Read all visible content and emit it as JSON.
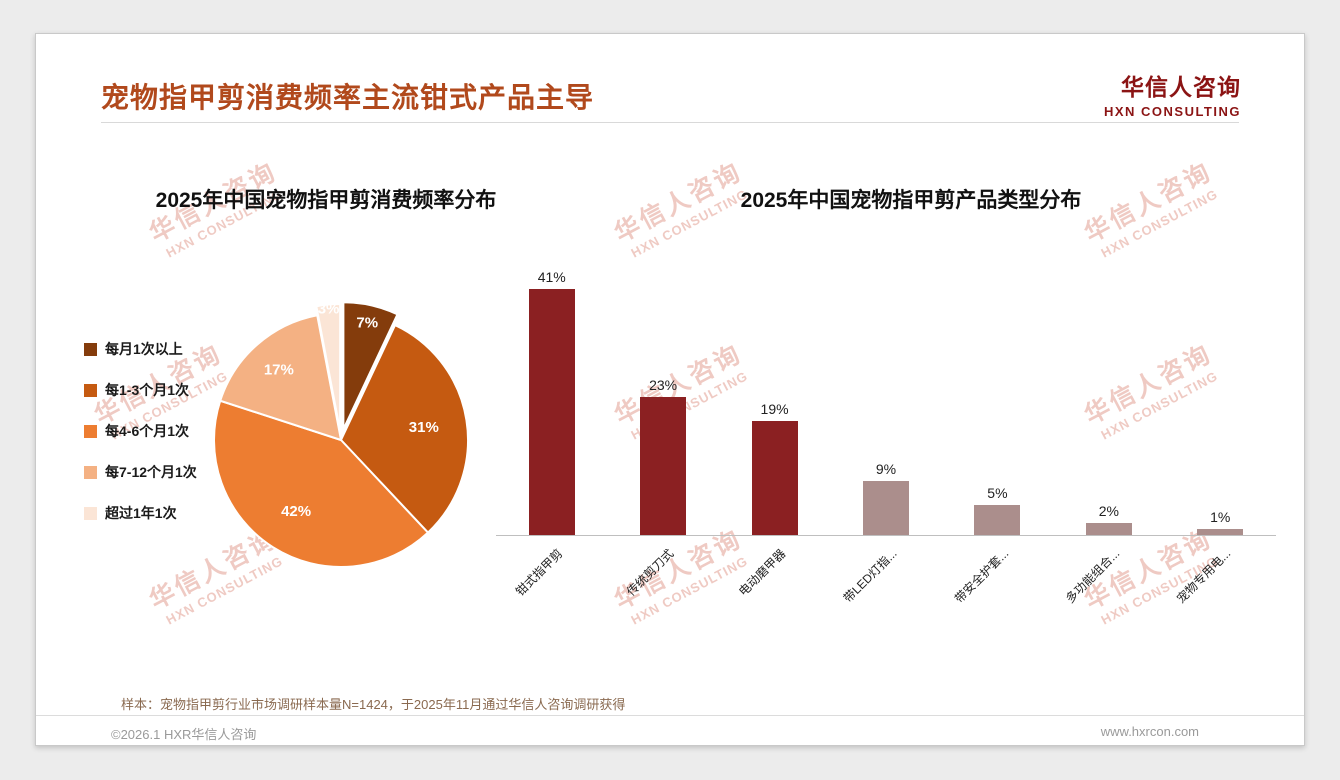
{
  "header": {
    "title": "宠物指甲剪消费频率主流钳式产品主导",
    "logo": {
      "cn": "华信人咨询",
      "en": "HXN CONSULTING"
    }
  },
  "watermark": {
    "cn": "华信人咨询",
    "en": "HXN CONSULTING"
  },
  "note": "样本：宠物指甲剪行业市场调研样本量N=1424，于2025年11月通过华信人咨询调研获得",
  "footer": {
    "copyright": "©2026.1 HXR华信人咨询",
    "website": "www.hxrcon.com"
  },
  "chart_data": [
    {
      "type": "pie",
      "title": "2025年中国宠物指甲剪消费频率分布",
      "labels": [
        "每月1次以上",
        "每1-3个月1次",
        "每4-6个月1次",
        "每7-12个月1次",
        "超过1年1次"
      ],
      "values": [
        7,
        31,
        42,
        17,
        3
      ],
      "data_labels": [
        "7%",
        "31%",
        "42%",
        "17%",
        "3%"
      ],
      "colors": [
        "#843C0C",
        "#C55A11",
        "#ED7D31",
        "#F4B183",
        "#FBE5D6"
      ],
      "legend_position": "left",
      "start_angle_deg": 0,
      "direction": "clockwise"
    },
    {
      "type": "bar",
      "title": "2025年中国宠物指甲剪产品类型分布",
      "categories": [
        "钳式指甲剪",
        "传统剪刀式",
        "电动磨甲器",
        "带LED灯指...",
        "带安全护套...",
        "多功能组合...",
        "宠物专用电..."
      ],
      "values": [
        41,
        23,
        19,
        9,
        5,
        2,
        1
      ],
      "data_labels": [
        "41%",
        "23%",
        "19%",
        "9%",
        "5%",
        "2%",
        "1%"
      ],
      "colors": [
        "#8B2022",
        "#8B2022",
        "#8B2022",
        "#AB8E8C",
        "#AB8E8C",
        "#AB8E8C",
        "#AB8E8C"
      ],
      "ylim": [
        0,
        45
      ],
      "grid": false,
      "legend_position": "none"
    }
  ]
}
